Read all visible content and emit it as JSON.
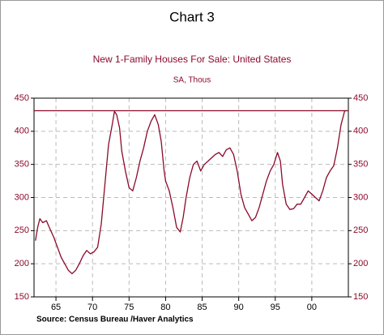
{
  "chart_data": {
    "type": "line",
    "title": "Chart 3",
    "subtitle": "New 1-Family Houses For Sale: United States",
    "units": "SA, Thous",
    "source": "Source:  Census Bureau /Haver Analytics",
    "color": "#8b0a2a",
    "xlim": [
      1962,
      2005
    ],
    "xticks": [
      {
        "value": 1965,
        "label": "65"
      },
      {
        "value": 1970,
        "label": "70"
      },
      {
        "value": 1975,
        "label": "75"
      },
      {
        "value": 1980,
        "label": "80"
      },
      {
        "value": 1985,
        "label": "85"
      },
      {
        "value": 1990,
        "label": "90"
      },
      {
        "value": 1995,
        "label": "95"
      },
      {
        "value": 2000,
        "label": "00"
      }
    ],
    "ylim": [
      150,
      450
    ],
    "yticks": [
      150,
      200,
      250,
      300,
      350,
      400,
      450
    ],
    "y2lim": [
      150,
      450
    ],
    "y2ticks": [
      150,
      200,
      250,
      300,
      350,
      400,
      450
    ],
    "grid": true,
    "reference_line": 431,
    "x": [
      1962.2,
      1962.5,
      1962.8,
      1963.2,
      1963.7,
      1964.2,
      1964.7,
      1965.2,
      1965.7,
      1966.2,
      1966.7,
      1967.2,
      1967.7,
      1968.2,
      1968.7,
      1969.2,
      1969.7,
      1970.2,
      1970.7,
      1971.2,
      1971.7,
      1972.2,
      1972.7,
      1973.0,
      1973.3,
      1973.7,
      1974.0,
      1974.5,
      1975.0,
      1975.5,
      1976.0,
      1976.5,
      1977.0,
      1977.5,
      1978.0,
      1978.5,
      1979.0,
      1979.4,
      1979.8,
      1980.0,
      1980.5,
      1981.0,
      1981.5,
      1982.0,
      1982.4,
      1982.8,
      1983.3,
      1983.8,
      1984.3,
      1984.8,
      1985.3,
      1985.8,
      1986.3,
      1986.8,
      1987.3,
      1987.8,
      1988.3,
      1988.8,
      1989.3,
      1989.8,
      1990.3,
      1990.8,
      1991.3,
      1991.8,
      1992.3,
      1992.8,
      1993.3,
      1993.8,
      1994.3,
      1994.8,
      1995.3,
      1995.7,
      1996.0,
      1996.5,
      1997.0,
      1997.5,
      1998.0,
      1998.5,
      1999.0,
      1999.5,
      2000.0,
      2000.5,
      2001.0,
      2001.5,
      2002.0,
      2002.5,
      2003.0,
      2003.5,
      2004.0,
      2004.5,
      2004.8
    ],
    "values": [
      235,
      255,
      268,
      262,
      265,
      252,
      240,
      225,
      210,
      200,
      190,
      185,
      190,
      200,
      212,
      220,
      215,
      218,
      225,
      260,
      320,
      380,
      410,
      430,
      425,
      405,
      370,
      340,
      315,
      310,
      330,
      355,
      375,
      400,
      415,
      425,
      410,
      385,
      340,
      325,
      310,
      285,
      255,
      248,
      270,
      300,
      330,
      350,
      355,
      340,
      350,
      355,
      360,
      365,
      368,
      362,
      372,
      375,
      365,
      340,
      305,
      285,
      275,
      265,
      270,
      285,
      305,
      325,
      340,
      350,
      368,
      355,
      320,
      290,
      282,
      283,
      290,
      290,
      300,
      310,
      305,
      300,
      295,
      310,
      330,
      340,
      348,
      375,
      410,
      431,
      431
    ]
  }
}
